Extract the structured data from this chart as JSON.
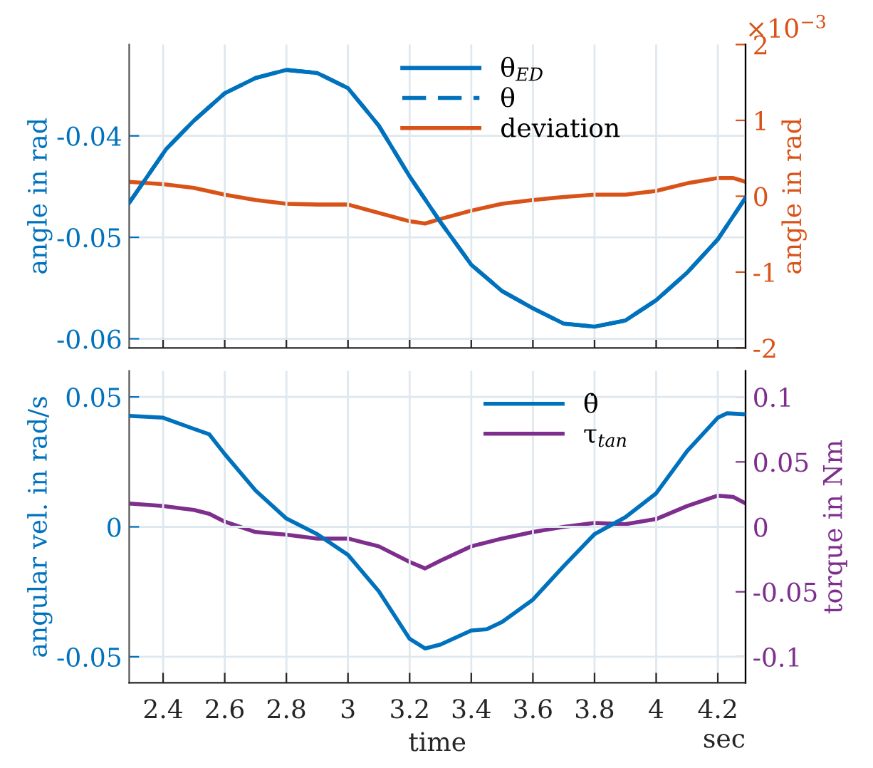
{
  "chart_data": [
    {
      "type": "line",
      "ylabel": "angle in rad",
      "y2label": "angle in rad",
      "xlim": [
        2.29,
        4.29
      ],
      "xticks": [
        2.4,
        2.6,
        2.8,
        3,
        3.2,
        3.4,
        3.6,
        3.8,
        4,
        4.2
      ],
      "ylim": [
        -0.0609,
        -0.031
      ],
      "yticks": [
        -0.06,
        -0.05,
        -0.04
      ],
      "y2lim": [
        -2,
        2
      ],
      "y2ticks": [
        -2,
        -1,
        0,
        1,
        2
      ],
      "annotations": [
        "×10$^{−3}$"
      ],
      "tick_labels": "y",
      "grid": true,
      "legend": "top",
      "series": [
        {
          "name": "θ$_{ED}$",
          "color": "#0072bd",
          "line_style": "solid",
          "x": [
            2.29,
            2.41,
            2.5,
            2.6,
            2.7,
            2.8,
            2.9,
            3.0,
            3.1,
            3.2,
            3.3,
            3.4,
            3.5,
            3.6,
            3.7,
            3.8,
            3.9,
            4.0,
            4.1,
            4.2,
            4.29
          ],
          "values": [
            -0.0466,
            -0.0413,
            -0.0385,
            -0.0358,
            -0.0343,
            -0.0335,
            -0.0338,
            -0.0353,
            -0.039,
            -0.044,
            -0.0485,
            -0.0527,
            -0.0553,
            -0.057,
            -0.0585,
            -0.0588,
            -0.0582,
            -0.0562,
            -0.0535,
            -0.0502,
            -0.0461
          ]
        },
        {
          "name": "θ",
          "color": "#0072bd",
          "line_style": "dashed",
          "x": [
            2.29,
            2.41,
            2.5,
            2.6,
            2.7,
            2.8,
            2.9,
            3.0,
            3.1,
            3.2,
            3.3,
            3.4,
            3.5,
            3.6,
            3.7,
            3.8,
            3.9,
            4.0,
            4.1,
            4.2,
            4.29
          ],
          "values": [
            -0.0466,
            -0.0413,
            -0.0385,
            -0.0358,
            -0.0343,
            -0.0335,
            -0.0338,
            -0.0353,
            -0.039,
            -0.044,
            -0.0485,
            -0.0527,
            -0.0553,
            -0.057,
            -0.0585,
            -0.0588,
            -0.0582,
            -0.0562,
            -0.0535,
            -0.0502,
            -0.0461
          ]
        },
        {
          "name": "deviation",
          "color": "#d95319",
          "line_style": "solid",
          "axis": "y2",
          "x": [
            2.29,
            2.4,
            2.5,
            2.6,
            2.7,
            2.8,
            2.9,
            3.0,
            3.1,
            3.2,
            3.25,
            3.3,
            3.4,
            3.5,
            3.6,
            3.7,
            3.8,
            3.9,
            4.0,
            4.1,
            4.2,
            4.25,
            4.29
          ],
          "values": [
            0.19,
            0.16,
            0.11,
            0.02,
            -0.05,
            -0.1,
            -0.11,
            -0.11,
            -0.22,
            -0.33,
            -0.36,
            -0.3,
            -0.19,
            -0.1,
            -0.05,
            -0.01,
            0.02,
            0.02,
            0.07,
            0.17,
            0.24,
            0.24,
            0.19
          ]
        }
      ]
    },
    {
      "type": "line",
      "xlabel": "time",
      "ylabel": "angular vel. in rad/s",
      "y2label": "torque in Nm",
      "xlim": [
        2.29,
        4.29
      ],
      "xticks": [
        2.4,
        2.6,
        2.8,
        3,
        3.2,
        3.4,
        3.6,
        3.8,
        4,
        4.2
      ],
      "ylim": [
        -0.06,
        0.06
      ],
      "yticks": [
        -0.05,
        0,
        0.05
      ],
      "y2lim": [
        -0.12,
        0.12
      ],
      "y2ticks": [
        -0.1,
        -0.05,
        0,
        0.05,
        0.1
      ],
      "annotations": [
        "sec"
      ],
      "grid": true,
      "legend": "top right",
      "series": [
        {
          "name": "θ̇",
          "color": "#0072bd",
          "line_style": "solid",
          "x": [
            2.29,
            2.4,
            2.5,
            2.55,
            2.6,
            2.7,
            2.8,
            2.9,
            3.0,
            3.1,
            3.2,
            3.25,
            3.3,
            3.4,
            3.45,
            3.5,
            3.6,
            3.7,
            3.8,
            3.9,
            4.0,
            4.1,
            4.2,
            4.23,
            4.29
          ],
          "values": [
            0.0427,
            0.042,
            0.0377,
            0.0356,
            0.028,
            0.014,
            0.0032,
            -0.0028,
            -0.0108,
            -0.0248,
            -0.0431,
            -0.0468,
            -0.0453,
            -0.0399,
            -0.0394,
            -0.0366,
            -0.028,
            -0.0151,
            -0.0028,
            0.0037,
            0.0129,
            0.0291,
            0.042,
            0.0437,
            0.0433
          ]
        },
        {
          "name": "τ$_{tan}$",
          "color": "#7e2f8e",
          "line_style": "solid",
          "axis": "y2",
          "x": [
            2.29,
            2.4,
            2.5,
            2.55,
            2.6,
            2.7,
            2.8,
            2.9,
            3.0,
            3.1,
            3.2,
            3.25,
            3.3,
            3.4,
            3.5,
            3.6,
            3.7,
            3.8,
            3.9,
            4.0,
            4.1,
            4.2,
            4.25,
            4.29
          ],
          "values": [
            0.018,
            0.016,
            0.013,
            0.01,
            0.004,
            -0.004,
            -0.006,
            -0.009,
            -0.009,
            -0.015,
            -0.027,
            -0.032,
            -0.026,
            -0.015,
            -0.009,
            -0.004,
            0,
            0.003,
            0.002,
            0.006,
            0.016,
            0.024,
            0.023,
            0.018
          ]
        }
      ]
    }
  ]
}
